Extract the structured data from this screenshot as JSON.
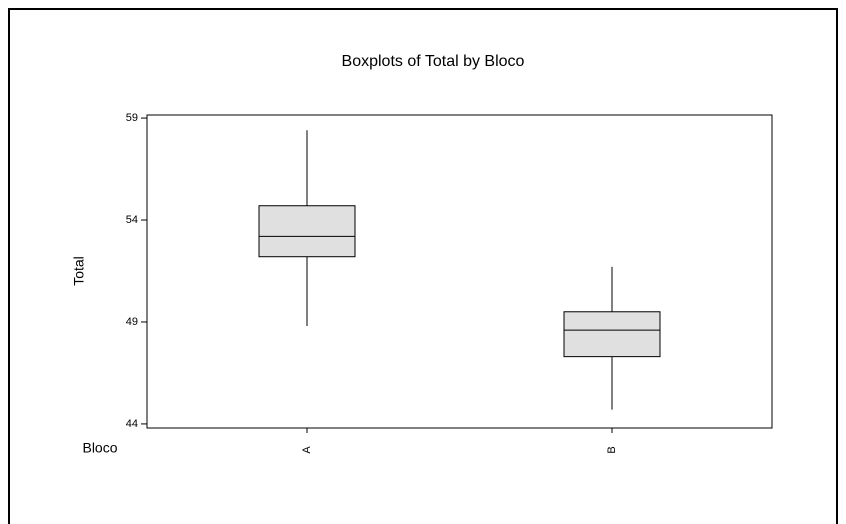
{
  "chart_data": {
    "type": "box",
    "title": "Boxplots of Total by Bloco",
    "x_label": "Bloco",
    "y_label": "Total",
    "categories": [
      "A",
      "B"
    ],
    "color": "#e0e0e0",
    "whisker_low": [
      48.8,
      44.7
    ],
    "q1": [
      52.2,
      47.3
    ],
    "median": [
      53.2,
      48.6
    ],
    "q3": [
      54.7,
      49.5
    ],
    "whisker_high": [
      58.4,
      51.7
    ],
    "ylim": [
      43.8,
      59.15
    ],
    "yticks": [
      44,
      49,
      54,
      59
    ],
    "grid": false
  }
}
